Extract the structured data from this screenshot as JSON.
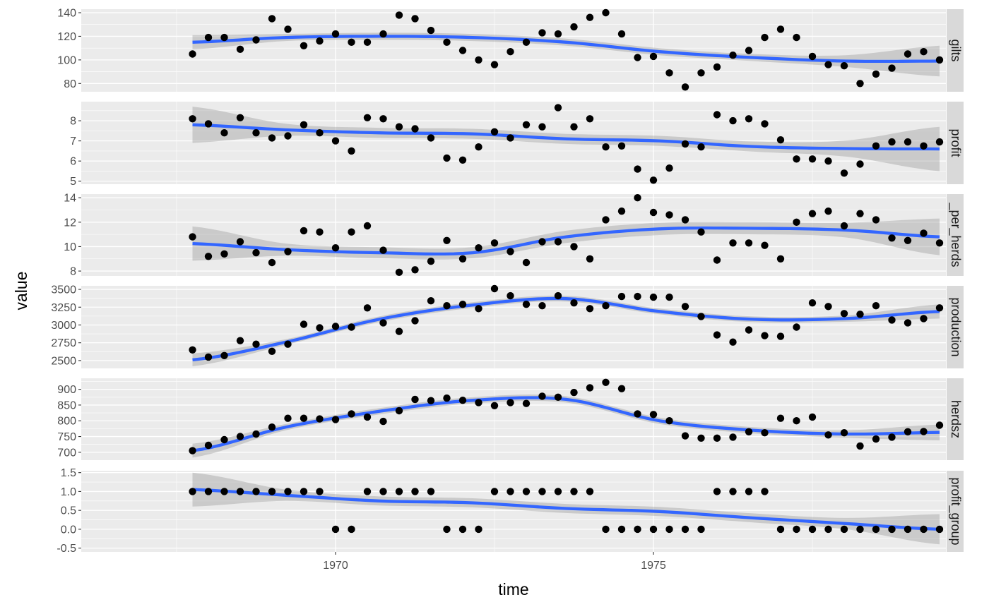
{
  "chart_data": {
    "type": "scatter",
    "layout": "faceted small multiples (one panel per variable, free y scales)",
    "xlabel": "time",
    "ylabel": "value",
    "x_ticks": [
      1970,
      1975
    ],
    "xlim": [
      1966.0,
      1979.6
    ],
    "x_points": [
      1967.75,
      1968.0,
      1968.25,
      1968.5,
      1968.75,
      1969.0,
      1969.25,
      1969.5,
      1969.75,
      1970.0,
      1970.25,
      1970.5,
      1970.75,
      1971.0,
      1971.25,
      1971.5,
      1971.75,
      1972.0,
      1972.25,
      1972.5,
      1972.75,
      1973.0,
      1973.25,
      1973.5,
      1973.75,
      1974.0,
      1974.25,
      1974.5,
      1974.75,
      1975.0,
      1975.25,
      1975.5,
      1975.75,
      1976.0,
      1976.25,
      1976.5,
      1976.75,
      1977.0,
      1977.25,
      1977.5,
      1977.75,
      1978.0,
      1978.25,
      1978.5,
      1978.75,
      1979.0,
      1979.25,
      1979.5
    ],
    "smooth": {
      "method": "loess",
      "line_color": "#3366FF",
      "ribbon_color": "#999999"
    },
    "grid": true,
    "panel_background": "#EBEBEB",
    "strip_background": "#D9D9D9",
    "point_color": "#000000",
    "panels": [
      {
        "strip": "gilts",
        "ylim": [
          73,
          143
        ],
        "y_ticks": [
          80,
          100,
          120,
          140
        ],
        "y_tick_labels": [
          "80",
          "100",
          "120",
          "140"
        ],
        "values": [
          105,
          119,
          119,
          109,
          117,
          135,
          126,
          112,
          116,
          122,
          115,
          115,
          122,
          138,
          135,
          125,
          115,
          108,
          100,
          96,
          107,
          115,
          123,
          122,
          128,
          136,
          140,
          122,
          102,
          103,
          89,
          77,
          89,
          94,
          104,
          108,
          119,
          126,
          119,
          103,
          96,
          95,
          80,
          88,
          93,
          105,
          107,
          100
        ],
        "smooth": [
          115,
          119,
          120,
          119,
          115,
          107,
          102,
          99,
          99
        ],
        "band": [
          6,
          3,
          3,
          3,
          3,
          3,
          3,
          5,
          13
        ]
      },
      {
        "strip": "profit",
        "ylim": [
          4.85,
          8.95
        ],
        "y_ticks": [
          5,
          6,
          7,
          8
        ],
        "y_tick_labels": [
          "5",
          "6",
          "7",
          "8"
        ],
        "values": [
          8.1,
          7.85,
          7.4,
          8.15,
          7.4,
          7.15,
          7.25,
          7.8,
          7.4,
          7.0,
          6.5,
          8.15,
          8.1,
          7.7,
          7.6,
          7.15,
          6.15,
          6.05,
          6.7,
          7.45,
          7.15,
          7.8,
          7.7,
          8.65,
          7.7,
          8.1,
          6.7,
          6.75,
          5.6,
          5.05,
          5.65,
          6.85,
          6.7,
          8.3,
          8.0,
          8.1,
          7.85,
          7.05,
          6.1,
          6.1,
          6.0,
          5.4,
          5.85,
          6.75,
          6.95,
          6.95,
          6.75,
          6.95
        ],
        "smooth": [
          7.8,
          7.55,
          7.4,
          7.35,
          7.1,
          7.0,
          6.72,
          6.62,
          6.6
        ],
        "band": [
          0.9,
          0.3,
          0.25,
          0.25,
          0.25,
          0.25,
          0.25,
          0.4,
          1.1
        ]
      },
      {
        "strip": "_per_herds",
        "ylim": [
          7.6,
          14.3
        ],
        "y_ticks": [
          8,
          10,
          12,
          14
        ],
        "y_tick_labels": [
          "8",
          "10",
          "12",
          "14"
        ],
        "values": [
          10.8,
          9.2,
          9.4,
          10.4,
          9.5,
          8.7,
          9.6,
          11.3,
          11.2,
          9.9,
          11.2,
          11.7,
          9.7,
          7.9,
          8.1,
          8.8,
          10.5,
          9.0,
          9.9,
          10.3,
          9.6,
          8.7,
          10.4,
          10.4,
          10.0,
          9.0,
          12.2,
          12.9,
          14.0,
          12.8,
          12.6,
          12.2,
          11.2,
          8.9,
          10.3,
          10.3,
          10.1,
          9.0,
          12.0,
          12.7,
          12.9,
          11.7,
          12.7,
          12.2,
          10.7,
          10.5,
          11.1,
          10.3
        ],
        "smooth": [
          10.25,
          9.75,
          9.5,
          9.5,
          10.8,
          11.45,
          11.5,
          11.35,
          10.8
        ],
        "band": [
          1.4,
          0.5,
          0.45,
          0.45,
          0.5,
          0.5,
          0.5,
          0.6,
          1.5
        ]
      },
      {
        "strip": "production",
        "ylim": [
          2390,
          3550
        ],
        "y_ticks": [
          2500,
          2750,
          3000,
          3250,
          3500
        ],
        "y_tick_labels": [
          "2500",
          "2750",
          "3000",
          "3250",
          "3500"
        ],
        "values": [
          2650,
          2550,
          2570,
          2780,
          2730,
          2630,
          2730,
          3010,
          2960,
          2980,
          2970,
          3240,
          3030,
          2910,
          3060,
          3340,
          3270,
          3290,
          3230,
          3510,
          3410,
          3290,
          3270,
          3410,
          3310,
          3230,
          3270,
          3400,
          3400,
          3390,
          3390,
          3260,
          3120,
          2860,
          2760,
          2930,
          2850,
          2840,
          2970,
          3310,
          3260,
          3160,
          3150,
          3270,
          3070,
          3030,
          3090,
          3240
        ],
        "smooth": [
          2510,
          2760,
          3080,
          3280,
          3370,
          3190,
          3080,
          3090,
          3190
        ],
        "band": [
          90,
          40,
          40,
          40,
          40,
          40,
          40,
          45,
          100
        ]
      },
      {
        "strip": "herdsz",
        "ylim": [
          675,
          935
        ],
        "y_ticks": [
          700,
          750,
          800,
          850,
          900
        ],
        "y_tick_labels": [
          "700",
          "750",
          "800",
          "850",
          "900"
        ],
        "values": [
          705,
          722,
          740,
          750,
          758,
          780,
          808,
          808,
          806,
          804,
          822,
          812,
          798,
          832,
          868,
          864,
          872,
          865,
          858,
          848,
          858,
          855,
          878,
          875,
          890,
          905,
          922,
          902,
          822,
          820,
          800,
          752,
          745,
          745,
          748,
          765,
          762,
          808,
          800,
          812,
          755,
          762,
          720,
          742,
          748,
          765,
          766,
          786
        ],
        "smooth": [
          705,
          780,
          830,
          865,
          868,
          800,
          770,
          758,
          763
        ],
        "band": [
          22,
          10,
          10,
          10,
          10,
          10,
          10,
          12,
          25
        ]
      },
      {
        "strip": "profit_group",
        "ylim": [
          -0.6,
          1.55
        ],
        "y_ticks": [
          -0.5,
          0.0,
          0.5,
          1.0,
          1.5
        ],
        "y_tick_labels": [
          "-0.5",
          "0.0",
          "0.5",
          "1.0",
          "1.5"
        ],
        "values": [
          1,
          1,
          1,
          1,
          1,
          1,
          1,
          1,
          1,
          0,
          0,
          1,
          1,
          1,
          1,
          1,
          0,
          0,
          0,
          1,
          1,
          1,
          1,
          1,
          1,
          1,
          0,
          0,
          0,
          0,
          0,
          0,
          0,
          1,
          1,
          1,
          1,
          0,
          0,
          0,
          0,
          0,
          0,
          0,
          0,
          0,
          0,
          0
        ],
        "smooth": [
          1.05,
          0.9,
          0.75,
          0.7,
          0.55,
          0.47,
          0.3,
          0.15,
          0.0
        ],
        "band": [
          0.45,
          0.15,
          0.12,
          0.12,
          0.12,
          0.12,
          0.12,
          0.15,
          0.4
        ]
      }
    ]
  }
}
